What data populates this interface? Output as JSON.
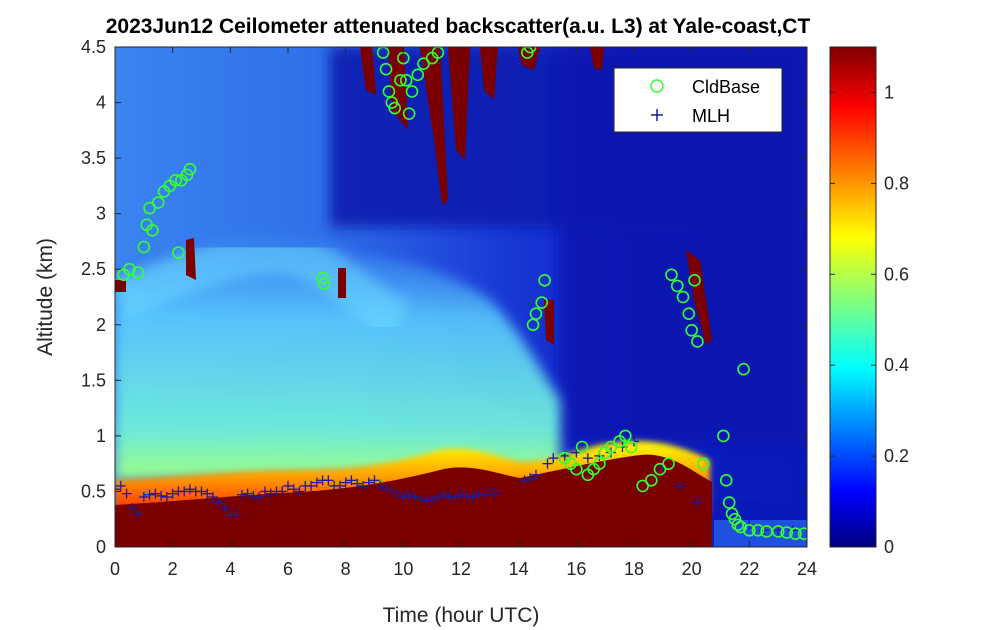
{
  "chart_data": {
    "type": "heatmap",
    "title": "2023Jun12 Ceilometer attenuated backscatter(a.u. L3) at Yale-coast,CT",
    "xlabel": "Time (hour UTC)",
    "ylabel": "Altitude (km)",
    "xlim": [
      0,
      24
    ],
    "ylim": [
      0,
      4.5
    ],
    "xticks": [
      "0",
      "2",
      "4",
      "6",
      "8",
      "10",
      "12",
      "14",
      "16",
      "18",
      "20",
      "22",
      "24"
    ],
    "yticks": [
      "0",
      "0.5",
      "1",
      "1.5",
      "2",
      "2.5",
      "3",
      "3.5",
      "4",
      "4.5"
    ],
    "colorbar": {
      "colormap": "jet",
      "clim": [
        0,
        1.1
      ],
      "ticks": [
        "0",
        "0.2",
        "0.4",
        "0.6",
        "0.8",
        "1"
      ]
    },
    "legend": {
      "position": "top-right",
      "entries": [
        {
          "label": "CldBase",
          "marker": "circle",
          "color": "#33ff33"
        },
        {
          "label": "MLH",
          "marker": "plus",
          "color": "#1a1aa0"
        }
      ]
    },
    "series": [
      {
        "name": "CldBase",
        "x": [
          0.3,
          0.5,
          0.8,
          1.0,
          1.1,
          1.2,
          1.3,
          1.5,
          1.7,
          1.9,
          2.1,
          2.3,
          2.5,
          2.6,
          2.2,
          7.2,
          7.25,
          9.3,
          9.4,
          9.5,
          9.6,
          9.7,
          9.9,
          10.0,
          10.1,
          10.2,
          10.3,
          10.5,
          10.7,
          11.0,
          11.2,
          14.3,
          14.4,
          14.5,
          14.6,
          14.8,
          14.9,
          15.6,
          15.8,
          16.0,
          16.2,
          16.4,
          16.6,
          16.8,
          17.0,
          17.2,
          17.5,
          17.7,
          17.9,
          18.3,
          18.6,
          18.9,
          19.2,
          19.3,
          19.5,
          19.7,
          19.9,
          20.0,
          20.1,
          20.2,
          20.4,
          21.1,
          21.2,
          21.3,
          21.4,
          21.5,
          21.6,
          21.7,
          21.8,
          22.0,
          22.3,
          22.6,
          23.0,
          23.3,
          23.6,
          23.9
        ],
        "y": [
          2.45,
          2.5,
          2.47,
          2.7,
          2.9,
          3.05,
          2.85,
          3.1,
          3.2,
          3.25,
          3.3,
          3.3,
          3.35,
          3.4,
          2.65,
          2.42,
          2.37,
          4.45,
          4.3,
          4.1,
          4.0,
          3.95,
          4.2,
          4.4,
          4.2,
          3.9,
          4.1,
          4.25,
          4.35,
          4.4,
          4.45,
          4.45,
          4.5,
          2.0,
          2.1,
          2.2,
          2.4,
          0.8,
          0.75,
          0.7,
          0.9,
          0.65,
          0.7,
          0.75,
          0.85,
          0.9,
          0.95,
          1.0,
          0.9,
          0.55,
          0.6,
          0.7,
          0.75,
          2.45,
          2.35,
          2.25,
          2.1,
          1.95,
          2.4,
          1.85,
          0.75,
          1.0,
          0.6,
          0.4,
          0.3,
          0.25,
          0.2,
          0.18,
          1.6,
          0.15,
          0.15,
          0.14,
          0.14,
          0.13,
          0.12,
          0.12
        ]
      },
      {
        "name": "MLH",
        "x": [
          0.0,
          0.2,
          0.4,
          0.6,
          0.8,
          1.0,
          1.2,
          1.4,
          1.6,
          1.8,
          2.0,
          2.2,
          2.4,
          2.6,
          2.8,
          3.0,
          3.2,
          3.4,
          3.6,
          3.8,
          4.0,
          4.2,
          4.4,
          4.6,
          4.8,
          5.0,
          5.2,
          5.4,
          5.6,
          5.8,
          6.0,
          6.2,
          6.4,
          6.6,
          6.8,
          7.0,
          7.2,
          7.4,
          7.6,
          7.8,
          8.0,
          8.2,
          8.4,
          8.6,
          8.8,
          9.0,
          9.2,
          9.4,
          9.6,
          9.8,
          10.0,
          10.2,
          10.4,
          10.6,
          10.8,
          11.0,
          11.2,
          11.4,
          11.6,
          11.8,
          12.0,
          12.2,
          12.4,
          12.6,
          12.8,
          13.0,
          13.2,
          14.2,
          14.4,
          14.6,
          15.0,
          15.2,
          15.6,
          16.0,
          16.4,
          16.8,
          17.2,
          17.6,
          18.0,
          19.0,
          19.6,
          20.2,
          21.0,
          21.5,
          22.0,
          22.5,
          23.0,
          23.5
        ],
        "y": [
          0.52,
          0.55,
          0.48,
          0.35,
          0.3,
          0.45,
          0.47,
          0.48,
          0.46,
          0.45,
          0.48,
          0.5,
          0.5,
          0.52,
          0.5,
          0.5,
          0.48,
          0.45,
          0.4,
          0.35,
          0.3,
          0.3,
          0.47,
          0.48,
          0.46,
          0.45,
          0.5,
          0.48,
          0.5,
          0.5,
          0.55,
          0.52,
          0.5,
          0.55,
          0.55,
          0.58,
          0.6,
          0.6,
          0.55,
          0.55,
          0.58,
          0.6,
          0.57,
          0.55,
          0.58,
          0.6,
          0.55,
          0.52,
          0.5,
          0.48,
          0.45,
          0.47,
          0.45,
          0.43,
          0.42,
          0.42,
          0.45,
          0.47,
          0.45,
          0.45,
          0.47,
          0.46,
          0.45,
          0.48,
          0.47,
          0.5,
          0.48,
          0.6,
          0.62,
          0.65,
          0.75,
          0.8,
          0.82,
          0.85,
          0.8,
          0.82,
          0.85,
          0.9,
          0.95,
          0.7,
          0.55,
          0.4,
          0.35,
          0.2,
          0.2,
          0.15,
          0.15,
          0.15
        ]
      }
    ]
  }
}
